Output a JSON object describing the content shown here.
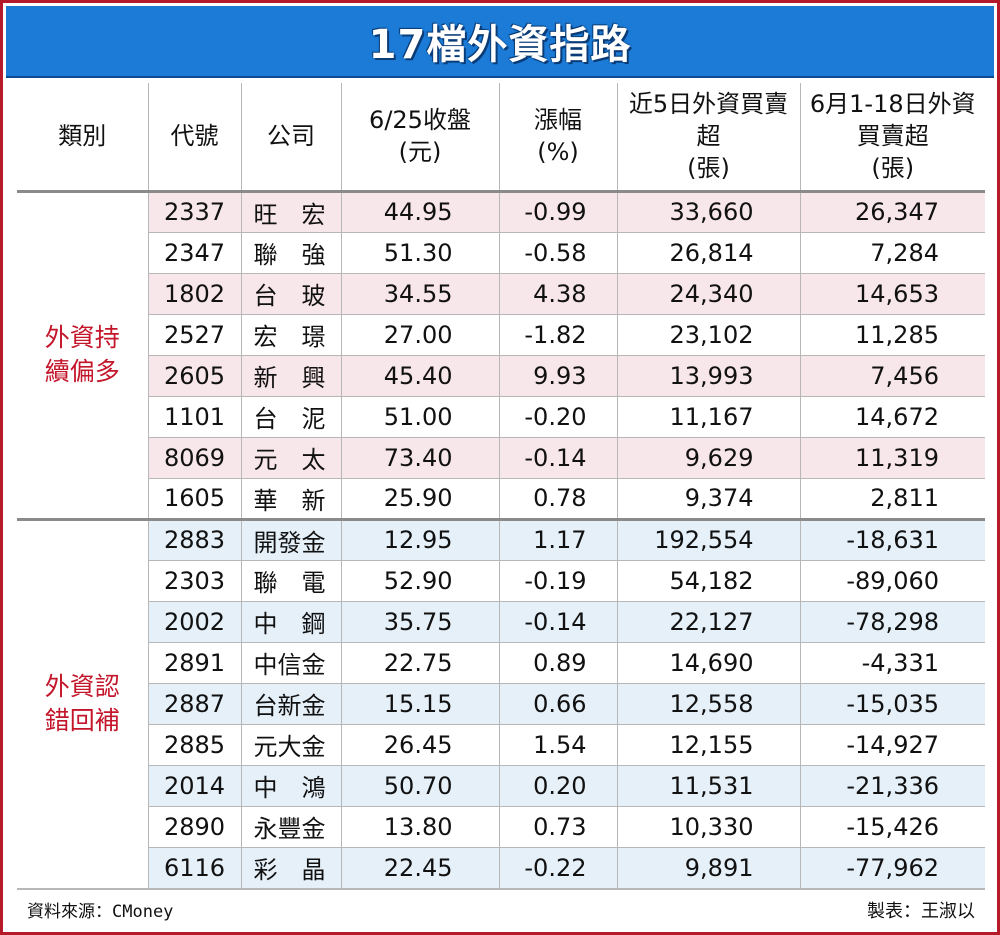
{
  "title": "17檔外資指路",
  "headers": {
    "category": "類別",
    "code": "代號",
    "company": "公司",
    "close_l1": "6/25收盤",
    "close_l2": "(元)",
    "change_l1": "漲幅",
    "change_l2": "(%)",
    "net5_l1": "近5日外資買賣",
    "net5_l2": "超",
    "net5_l3": "(張)",
    "netm_l1": "6月1-18日外資",
    "netm_l2": "買賣超",
    "netm_l3": "(張)"
  },
  "groups": [
    {
      "label_l1": "外資持",
      "label_l2": "續偏多"
    },
    {
      "label_l1": "外資認",
      "label_l2": "錯回補"
    }
  ],
  "rows": [
    {
      "code": "2337",
      "company": "旺　宏",
      "close": "44.95",
      "change": "-0.99",
      "net5": "33,660",
      "netm": "26,347"
    },
    {
      "code": "2347",
      "company": "聯　強",
      "close": "51.30",
      "change": "-0.58",
      "net5": "26,814",
      "netm": "7,284"
    },
    {
      "code": "1802",
      "company": "台　玻",
      "close": "34.55",
      "change": "4.38",
      "net5": "24,340",
      "netm": "14,653"
    },
    {
      "code": "2527",
      "company": "宏　璟",
      "close": "27.00",
      "change": "-1.82",
      "net5": "23,102",
      "netm": "11,285"
    },
    {
      "code": "2605",
      "company": "新　興",
      "close": "45.40",
      "change": "9.93",
      "net5": "13,993",
      "netm": "7,456"
    },
    {
      "code": "1101",
      "company": "台　泥",
      "close": "51.00",
      "change": "-0.20",
      "net5": "11,167",
      "netm": "14,672"
    },
    {
      "code": "8069",
      "company": "元　太",
      "close": "73.40",
      "change": "-0.14",
      "net5": "9,629",
      "netm": "11,319"
    },
    {
      "code": "1605",
      "company": "華　新",
      "close": "25.90",
      "change": "0.78",
      "net5": "9,374",
      "netm": "2,811"
    },
    {
      "code": "2883",
      "company": "開發金",
      "close": "12.95",
      "change": "1.17",
      "net5": "192,554",
      "netm": "-18,631"
    },
    {
      "code": "2303",
      "company": "聯　電",
      "close": "52.90",
      "change": "-0.19",
      "net5": "54,182",
      "netm": "-89,060"
    },
    {
      "code": "2002",
      "company": "中　鋼",
      "close": "35.75",
      "change": "-0.14",
      "net5": "22,127",
      "netm": "-78,298"
    },
    {
      "code": "2891",
      "company": "中信金",
      "close": "22.75",
      "change": "0.89",
      "net5": "14,690",
      "netm": "-4,331"
    },
    {
      "code": "2887",
      "company": "台新金",
      "close": "15.15",
      "change": "0.66",
      "net5": "12,558",
      "netm": "-15,035"
    },
    {
      "code": "2885",
      "company": "元大金",
      "close": "26.45",
      "change": "1.54",
      "net5": "12,155",
      "netm": "-14,927"
    },
    {
      "code": "2014",
      "company": "中　鴻",
      "close": "50.70",
      "change": "0.20",
      "net5": "11,531",
      "netm": "-21,336"
    },
    {
      "code": "2890",
      "company": "永豐金",
      "close": "13.80",
      "change": "0.73",
      "net5": "10,330",
      "netm": "-15,426"
    },
    {
      "code": "6116",
      "company": "彩　晶",
      "close": "22.45",
      "change": "-0.22",
      "net5": "9,891",
      "netm": "-77,962"
    }
  ],
  "footer": {
    "source": "資料來源：CMoney",
    "author": "製表：王淑以"
  },
  "colors": {
    "title_bg": "#1b7bd6",
    "border": "#b51a2a",
    "category_text": "#c4162a",
    "pink_row": "#f7e6ea",
    "blue_row": "#e5f0f9"
  }
}
